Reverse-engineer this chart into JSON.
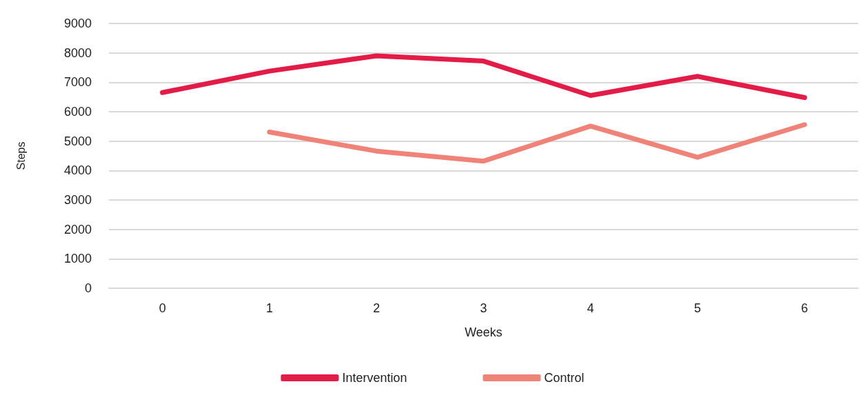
{
  "chart_data": {
    "type": "line",
    "xlabel": "Weeks",
    "ylabel": "Steps",
    "categories": [
      "0",
      "1",
      "2",
      "3",
      "4",
      "5",
      "6"
    ],
    "series": [
      {
        "name": "Intervention",
        "color": "#e31b47",
        "values": [
          6650,
          7380,
          7900,
          7720,
          6550,
          7200,
          6480
        ]
      },
      {
        "name": "Control",
        "color": "#f08378",
        "values": [
          null,
          5310,
          4660,
          4320,
          5510,
          4450,
          5560
        ]
      }
    ],
    "ylim": [
      0,
      9000
    ],
    "yticks": [
      0,
      1000,
      2000,
      3000,
      4000,
      5000,
      6000,
      7000,
      8000,
      9000
    ],
    "grid": "y",
    "legend": "bottom",
    "marker": "none",
    "line_style": "solid"
  }
}
